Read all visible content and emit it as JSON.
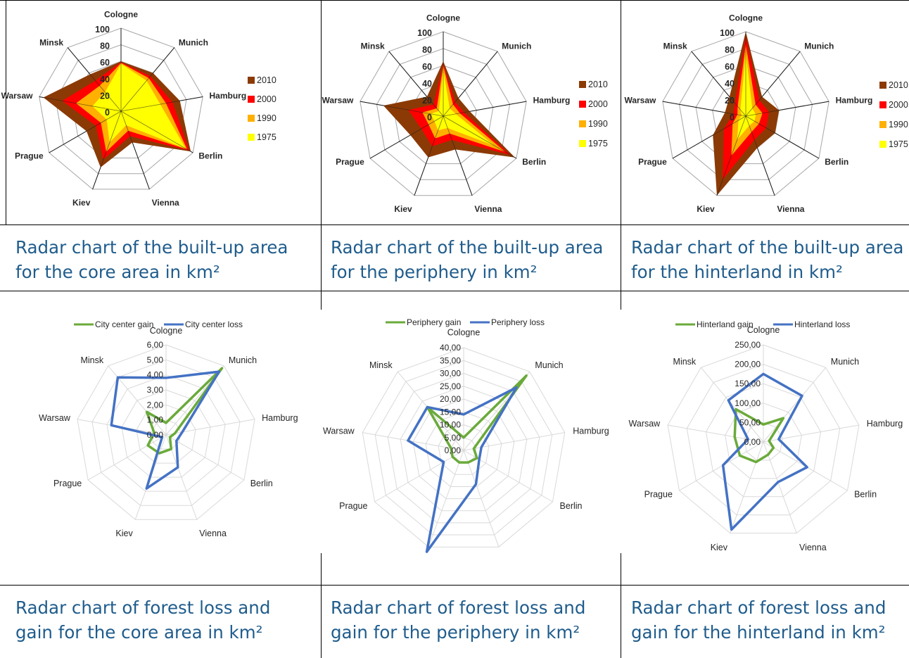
{
  "axes": [
    "Cologne",
    "Munich",
    "Hamburg",
    "Berlin",
    "Vienna",
    "Kiev",
    "Prague",
    "Warsaw",
    "Minsk"
  ],
  "colors": {
    "y2010": "#8b3a05",
    "y2000": "#ff0000",
    "y1990": "#ffb000",
    "y1975": "#ffff00",
    "gain": "#6aaa3a",
    "loss": "#4472c4",
    "caption": "#1f5c8c"
  },
  "captions": [
    {
      "line1": "Radar chart of the built-up area",
      "line2": "for the core area in km²"
    },
    {
      "line1": "Radar chart of the built-up area",
      "line2": "for the periphery in km²"
    },
    {
      "line1": "Radar chart of the built-up area",
      "line2": "for the hinterland in km²"
    },
    {
      "line1": "Radar chart of forest loss and",
      "line2": "gain for the core area in km²"
    },
    {
      "line1": "Radar chart of forest loss and",
      "line2": "gain for the periphery in km²"
    },
    {
      "line1": "Radar chart of forest loss and",
      "line2": "gain for the hinterland in km²"
    }
  ],
  "chart_data": [
    {
      "type": "radar",
      "categories": [
        "Cologne",
        "Munich",
        "Hamburg",
        "Berlin",
        "Vienna",
        "Kiev",
        "Prague",
        "Warsaw",
        "Minsk"
      ],
      "rlim": [
        0,
        100
      ],
      "tick_labels": [
        "0",
        "20",
        "40",
        "60",
        "80",
        "100"
      ],
      "legend_position": "right",
      "series": [
        {
          "name": "2010",
          "values": [
            60,
            60,
            72,
            97,
            40,
            72,
            48,
            95,
            58
          ]
        },
        {
          "name": "2000",
          "values": [
            59,
            55,
            63,
            95,
            32,
            62,
            35,
            72,
            48
          ]
        },
        {
          "name": "1990",
          "values": [
            58,
            52,
            55,
            92,
            25,
            52,
            28,
            55,
            40
          ]
        },
        {
          "name": "1975",
          "values": [
            57,
            48,
            48,
            90,
            18,
            40,
            20,
            35,
            30
          ]
        }
      ]
    },
    {
      "type": "radar",
      "categories": [
        "Cologne",
        "Munich",
        "Hamburg",
        "Berlin",
        "Vienna",
        "Kiev",
        "Prague",
        "Warsaw",
        "Minsk"
      ],
      "rlim": [
        0,
        100
      ],
      "tick_labels": [
        "0",
        "20",
        "40",
        "60",
        "80",
        "100"
      ],
      "legend_position": "right",
      "series": [
        {
          "name": "2010",
          "values": [
            65,
            28,
            32,
            98,
            42,
            52,
            45,
            72,
            30
          ]
        },
        {
          "name": "2000",
          "values": [
            62,
            22,
            25,
            92,
            30,
            38,
            30,
            42,
            18
          ]
        },
        {
          "name": "1990",
          "values": [
            60,
            18,
            20,
            85,
            22,
            28,
            20,
            25,
            12
          ]
        },
        {
          "name": "1975",
          "values": [
            55,
            12,
            15,
            70,
            15,
            18,
            12,
            15,
            8
          ]
        }
      ]
    },
    {
      "type": "radar",
      "categories": [
        "Cologne",
        "Munich",
        "Hamburg",
        "Berlin",
        "Vienna",
        "Kiev",
        "Prague",
        "Warsaw",
        "Minsk"
      ],
      "rlim": [
        0,
        100
      ],
      "tick_labels": [
        "0",
        "20",
        "40",
        "60",
        "80",
        "100"
      ],
      "legend_position": "right",
      "series": [
        {
          "name": "2010",
          "values": [
            100,
            30,
            40,
            40,
            40,
            100,
            45,
            25,
            30
          ]
        },
        {
          "name": "2000",
          "values": [
            95,
            25,
            28,
            28,
            30,
            80,
            30,
            15,
            20
          ]
        },
        {
          "name": "1990",
          "values": [
            85,
            18,
            20,
            18,
            20,
            50,
            18,
            10,
            15
          ]
        },
        {
          "name": "1975",
          "values": [
            75,
            12,
            12,
            12,
            12,
            30,
            10,
            5,
            10
          ]
        }
      ]
    },
    {
      "type": "radar",
      "categories": [
        "Cologne",
        "Munich",
        "Hamburg",
        "Berlin",
        "Vienna",
        "Kiev",
        "Prague",
        "Warsaw",
        "Minsk"
      ],
      "rlim": [
        0,
        6
      ],
      "tick_labels": [
        "0,00",
        "1,00",
        "2,00",
        "3,00",
        "4,00",
        "5,00",
        "6,00"
      ],
      "legend_position": "top",
      "series": [
        {
          "name": "City center gain",
          "values": [
            0.8,
            5.8,
            0.6,
            0.3,
            1.0,
            1.3,
            1.4,
            0.8,
            2.0
          ]
        },
        {
          "name": "City center loss",
          "values": [
            3.8,
            5.5,
            1.1,
            0.8,
            2.3,
            3.8,
            0.3,
            3.7,
            5.0
          ]
        }
      ]
    },
    {
      "type": "radar",
      "categories": [
        "Cologne",
        "Munich",
        "Hamburg",
        "Berlin",
        "Vienna",
        "Kiev",
        "Prague",
        "Warsaw",
        "Minsk"
      ],
      "rlim": [
        0,
        40
      ],
      "tick_labels": [
        "0,00",
        "5,00",
        "10,00",
        "15,00",
        "20,00",
        "25,00",
        "30,00",
        "35,00",
        "40,00"
      ],
      "legend_position": "top",
      "series": [
        {
          "name": "Periphery gain",
          "values": [
            5,
            38,
            4,
            6,
            5,
            5,
            5,
            5,
            22
          ]
        },
        {
          "name": "Periphery loss",
          "values": [
            14,
            32,
            7,
            7,
            14,
            42,
            9,
            22,
            22
          ]
        }
      ]
    },
    {
      "type": "radar",
      "categories": [
        "Cologne",
        "Munich",
        "Hamburg",
        "Berlin",
        "Vienna",
        "Kiev",
        "Prague",
        "Warsaw",
        "Minsk"
      ],
      "rlim": [
        0,
        250
      ],
      "tick_labels": [
        "0,00",
        "50,00",
        "100,00",
        "150,00",
        "200,00",
        "250,00"
      ],
      "legend_position": "top",
      "series": [
        {
          "name": "Hinterland gain",
          "values": [
            45,
            80,
            15,
            30,
            35,
            55,
            70,
            75,
            110
          ]
        },
        {
          "name": "Hinterland loss",
          "values": [
            175,
            155,
            40,
            130,
            110,
            240,
            120,
            40,
            140
          ]
        }
      ]
    }
  ]
}
